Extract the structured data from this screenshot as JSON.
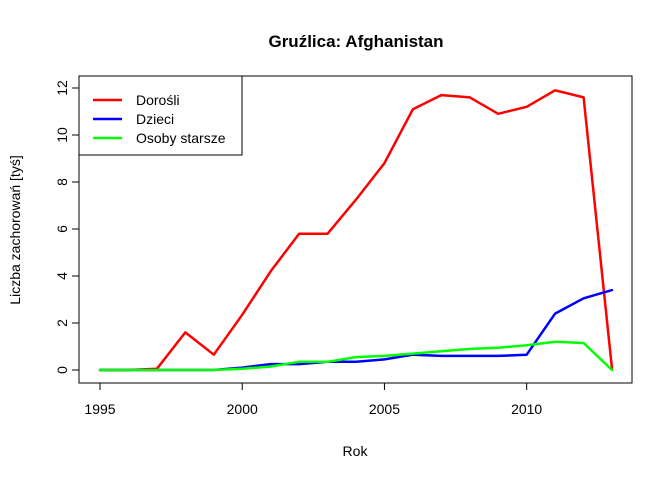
{
  "chart_data": {
    "type": "line",
    "title": "Gruźlica: Afghanistan",
    "xlabel": "Rok",
    "ylabel": "Liczba zachorowań [tyś]",
    "xlim": [
      1995,
      2013
    ],
    "ylim": [
      0,
      12
    ],
    "x_ticks": [
      "1995",
      "2000",
      "2005",
      "2010"
    ],
    "y_ticks": [
      "0",
      "2",
      "4",
      "6",
      "8",
      "10",
      "12"
    ],
    "grid": false,
    "legend_position": "top-left",
    "x": [
      1995,
      1996,
      1997,
      1998,
      1999,
      2000,
      2001,
      2002,
      2003,
      2004,
      2005,
      2006,
      2007,
      2008,
      2009,
      2010,
      2011,
      2012,
      2013
    ],
    "series": [
      {
        "name": "Dorośli",
        "color": "#ff0000",
        "values": [
          0,
          0,
          0.05,
          1.6,
          0.65,
          2.35,
          4.2,
          5.8,
          5.8,
          7.25,
          8.8,
          11.1,
          11.7,
          11.6,
          10.9,
          11.2,
          11.9,
          11.6,
          0.05
        ]
      },
      {
        "name": "Dzieci",
        "color": "#0000ff",
        "values": [
          0,
          0,
          0,
          0,
          0,
          0.1,
          0.25,
          0.25,
          0.35,
          0.35,
          0.45,
          0.65,
          0.6,
          0.6,
          0.6,
          0.65,
          2.4,
          3.05,
          3.4
        ]
      },
      {
        "name": "Osoby starsze",
        "color": "#00ff00",
        "values": [
          0,
          0,
          0,
          0,
          0,
          0.05,
          0.15,
          0.35,
          0.35,
          0.55,
          0.6,
          0.7,
          0.8,
          0.9,
          0.95,
          1.05,
          1.2,
          1.15,
          0
        ]
      }
    ]
  }
}
